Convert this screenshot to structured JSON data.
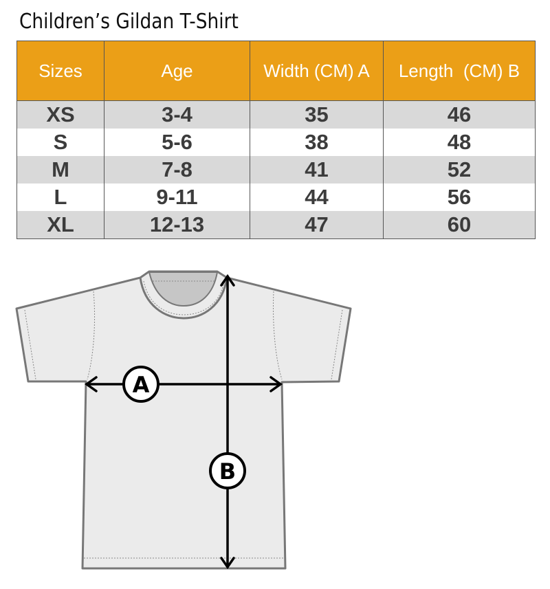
{
  "title": "Children’s Gildan T-Shirt",
  "colors": {
    "header": "#eb9f17",
    "row_alt": "#d9d9d9",
    "text": "#3c3c3c"
  },
  "table": {
    "headers": [
      "Sizes",
      "Age",
      "Width (CM) A",
      "Length  (CM) B"
    ],
    "rows": [
      [
        "XS",
        "3-4",
        "35",
        "46"
      ],
      [
        "S",
        "5-6",
        "38",
        "48"
      ],
      [
        "M",
        "7-8",
        "41",
        "52"
      ],
      [
        "L",
        "9-11",
        "44",
        "56"
      ],
      [
        "XL",
        "12-13",
        "47",
        "60"
      ]
    ]
  },
  "diagram": {
    "label_a": "A",
    "label_b": "B"
  }
}
